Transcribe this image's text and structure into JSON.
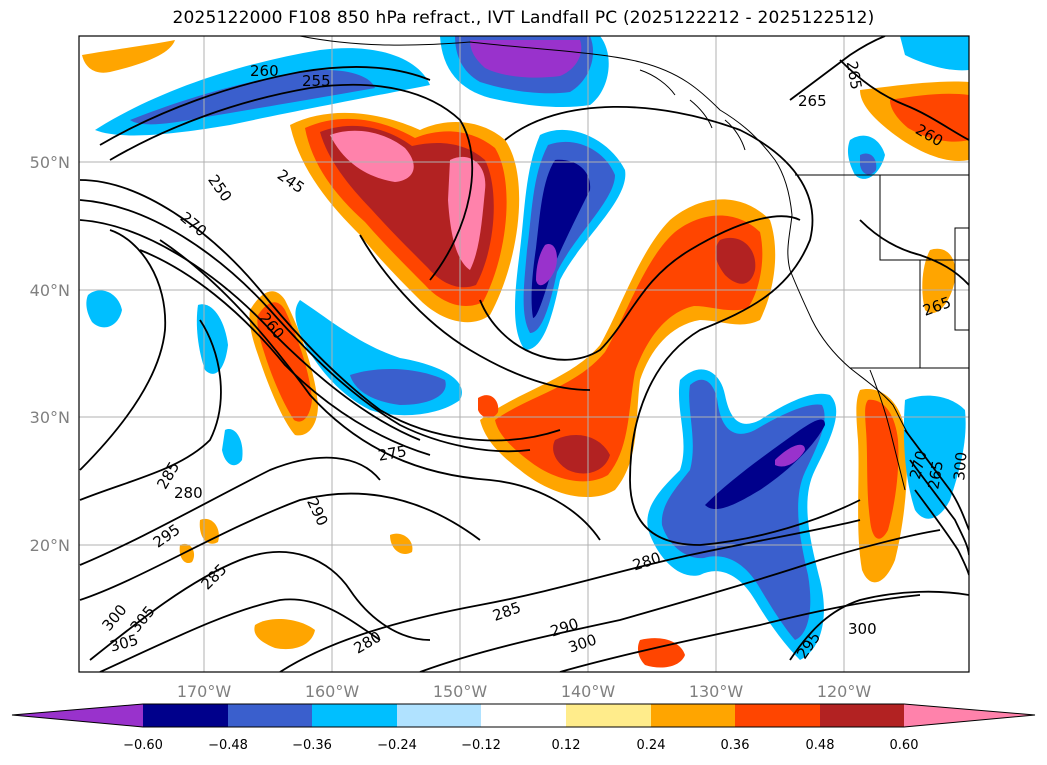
{
  "title": "2025122000 F108 850 hPa refract., IVT Landfall PC (2025122212 - 2025122512)",
  "colors": {
    "neg_060": "#9932cc",
    "neg_048": "#00008b",
    "neg_036": "#3a5fcd",
    "neg_024": "#00bfff",
    "neg_012": "#b0e2ff",
    "zero": "#ffffff",
    "pos_012": "#ffec8b",
    "pos_024": "#ffa500",
    "pos_036": "#ff4500",
    "pos_048": "#b22222",
    "pos_060": "#ff82ab",
    "grid": "#b0b0b0",
    "tick": "#808080"
  },
  "axes": {
    "lon_ticks": [
      "170°W",
      "160°W",
      "150°W",
      "140°W",
      "130°W",
      "120°W"
    ],
    "lat_ticks": [
      "50°N",
      "40°N",
      "30°N",
      "20°N"
    ]
  },
  "colorbar": {
    "labels": [
      "−0.60",
      "−0.48",
      "−0.36",
      "−0.24",
      "−0.12",
      "0.12",
      "0.24",
      "0.36",
      "0.48",
      "0.60"
    ]
  },
  "contour_labels": [
    "260",
    "255",
    "265",
    "265",
    "260",
    "250",
    "245",
    "270",
    "260",
    "275",
    "285",
    "280",
    "295",
    "290",
    "285",
    "300",
    "305",
    "305",
    "280",
    "285",
    "290",
    "300",
    "280",
    "295",
    "300",
    "265",
    "270",
    "265",
    "300"
  ]
}
